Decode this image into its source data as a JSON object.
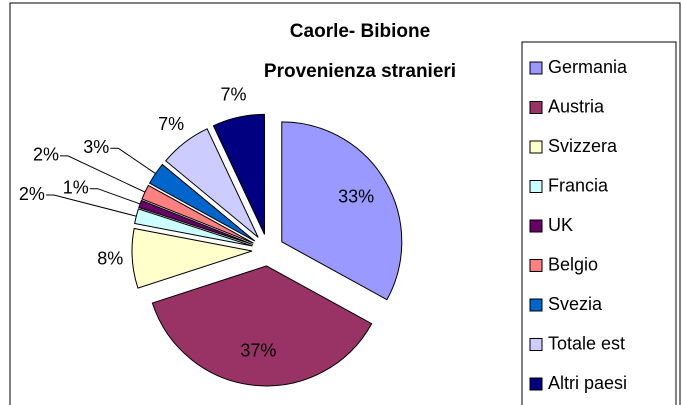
{
  "chart_data": {
    "type": "pie",
    "title": "Caorle- Bibione",
    "subtitle": "Provenienza stranieri",
    "categories": [
      "Germania",
      "Austria",
      "Svizzera",
      "Francia",
      "UK",
      "Belgio",
      "Svezia",
      "Totale est",
      "Altri paesi"
    ],
    "values": [
      33,
      37,
      8,
      2,
      1,
      2,
      3,
      7,
      7
    ],
    "value_labels": [
      "33%",
      "37%",
      "8%",
      "2%",
      "1%",
      "2%",
      "3%",
      "7%",
      "7%"
    ],
    "colors": [
      "#9999ff",
      "#993366",
      "#ffffcc",
      "#ccffff",
      "#660066",
      "#ff8080",
      "#0066cc",
      "#ccccff",
      "#000080"
    ],
    "legend": "right"
  }
}
